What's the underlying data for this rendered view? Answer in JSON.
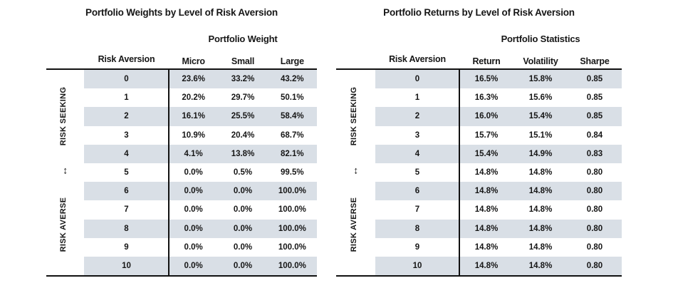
{
  "colors": {
    "stripe": "#d9dfe6",
    "line": "#111111",
    "text": "#161616",
    "background": "#ffffff"
  },
  "left_table": {
    "title": "Portfolio Weights by Level of Risk Aversion",
    "group_header": "Portfolio Weight",
    "row_header": "Risk Aversion",
    "col1": "Micro",
    "col2": "Small",
    "col3": "Large",
    "side_top": "RISK SEEKING",
    "side_arrow": "↔",
    "side_bottom": "RISK AVERSE",
    "rows": [
      {
        "ra": "0",
        "v1": "23.6%",
        "v2": "33.2%",
        "v3": "43.2%"
      },
      {
        "ra": "1",
        "v1": "20.2%",
        "v2": "29.7%",
        "v3": "50.1%"
      },
      {
        "ra": "2",
        "v1": "16.1%",
        "v2": "25.5%",
        "v3": "58.4%"
      },
      {
        "ra": "3",
        "v1": "10.9%",
        "v2": "20.4%",
        "v3": "68.7%"
      },
      {
        "ra": "4",
        "v1": "4.1%",
        "v2": "13.8%",
        "v3": "82.1%"
      },
      {
        "ra": "5",
        "v1": "0.0%",
        "v2": "0.5%",
        "v3": "99.5%"
      },
      {
        "ra": "6",
        "v1": "0.0%",
        "v2": "0.0%",
        "v3": "100.0%"
      },
      {
        "ra": "7",
        "v1": "0.0%",
        "v2": "0.0%",
        "v3": "100.0%"
      },
      {
        "ra": "8",
        "v1": "0.0%",
        "v2": "0.0%",
        "v3": "100.0%"
      },
      {
        "ra": "9",
        "v1": "0.0%",
        "v2": "0.0%",
        "v3": "100.0%"
      },
      {
        "ra": "10",
        "v1": "0.0%",
        "v2": "0.0%",
        "v3": "100.0%"
      }
    ]
  },
  "right_table": {
    "title": "Portfolio Returns by Level of Risk Aversion",
    "group_header": "Portfolio Statistics",
    "row_header": "Risk Aversion",
    "col1": "Return",
    "col2": "Volatility",
    "col3": "Sharpe",
    "side_top": "RISK SEEKING",
    "side_arrow": "↔",
    "side_bottom": "RISK AVERSE",
    "rows": [
      {
        "ra": "0",
        "v1": "16.5%",
        "v2": "15.8%",
        "v3": "0.85"
      },
      {
        "ra": "1",
        "v1": "16.3%",
        "v2": "15.6%",
        "v3": "0.85"
      },
      {
        "ra": "2",
        "v1": "16.0%",
        "v2": "15.4%",
        "v3": "0.85"
      },
      {
        "ra": "3",
        "v1": "15.7%",
        "v2": "15.1%",
        "v3": "0.84"
      },
      {
        "ra": "4",
        "v1": "15.4%",
        "v2": "14.9%",
        "v3": "0.83"
      },
      {
        "ra": "5",
        "v1": "14.8%",
        "v2": "14.8%",
        "v3": "0.80"
      },
      {
        "ra": "6",
        "v1": "14.8%",
        "v2": "14.8%",
        "v3": "0.80"
      },
      {
        "ra": "7",
        "v1": "14.8%",
        "v2": "14.8%",
        "v3": "0.80"
      },
      {
        "ra": "8",
        "v1": "14.8%",
        "v2": "14.8%",
        "v3": "0.80"
      },
      {
        "ra": "9",
        "v1": "14.8%",
        "v2": "14.8%",
        "v3": "0.80"
      },
      {
        "ra": "10",
        "v1": "14.8%",
        "v2": "14.8%",
        "v3": "0.80"
      }
    ]
  }
}
